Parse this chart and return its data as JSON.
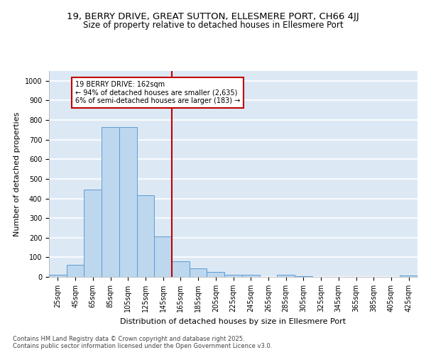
{
  "title_line1": "19, BERRY DRIVE, GREAT SUTTON, ELLESMERE PORT, CH66 4JJ",
  "title_line2": "Size of property relative to detached houses in Ellesmere Port",
  "xlabel": "Distribution of detached houses by size in Ellesmere Port",
  "ylabel": "Number of detached properties",
  "categories": [
    "25sqm",
    "45sqm",
    "65sqm",
    "85sqm",
    "105sqm",
    "125sqm",
    "145sqm",
    "165sqm",
    "185sqm",
    "205sqm",
    "225sqm",
    "245sqm",
    "265sqm",
    "285sqm",
    "305sqm",
    "325sqm",
    "345sqm",
    "365sqm",
    "385sqm",
    "405sqm",
    "425sqm"
  ],
  "values": [
    10,
    63,
    445,
    765,
    765,
    415,
    205,
    78,
    45,
    27,
    12,
    12,
    0,
    12,
    5,
    0,
    0,
    0,
    0,
    0,
    7
  ],
  "bar_color": "#bdd7ee",
  "bar_edge_color": "#5b9bd5",
  "vline_color": "#c00000",
  "annotation_text": "19 BERRY DRIVE: 162sqm\n← 94% of detached houses are smaller (2,635)\n6% of semi-detached houses are larger (183) →",
  "annotation_box_color": "#c00000",
  "ylim": [
    0,
    1050
  ],
  "yticks": [
    0,
    100,
    200,
    300,
    400,
    500,
    600,
    700,
    800,
    900,
    1000
  ],
  "footnote": "Contains HM Land Registry data © Crown copyright and database right 2025.\nContains public sector information licensed under the Open Government Licence v3.0.",
  "background_color": "#dce9f5",
  "grid_color": "#ffffff",
  "title_fontsize": 9.5,
  "subtitle_fontsize": 8.5,
  "axis_label_fontsize": 8,
  "tick_fontsize": 7,
  "annotation_fontsize": 7,
  "footnote_fontsize": 6
}
